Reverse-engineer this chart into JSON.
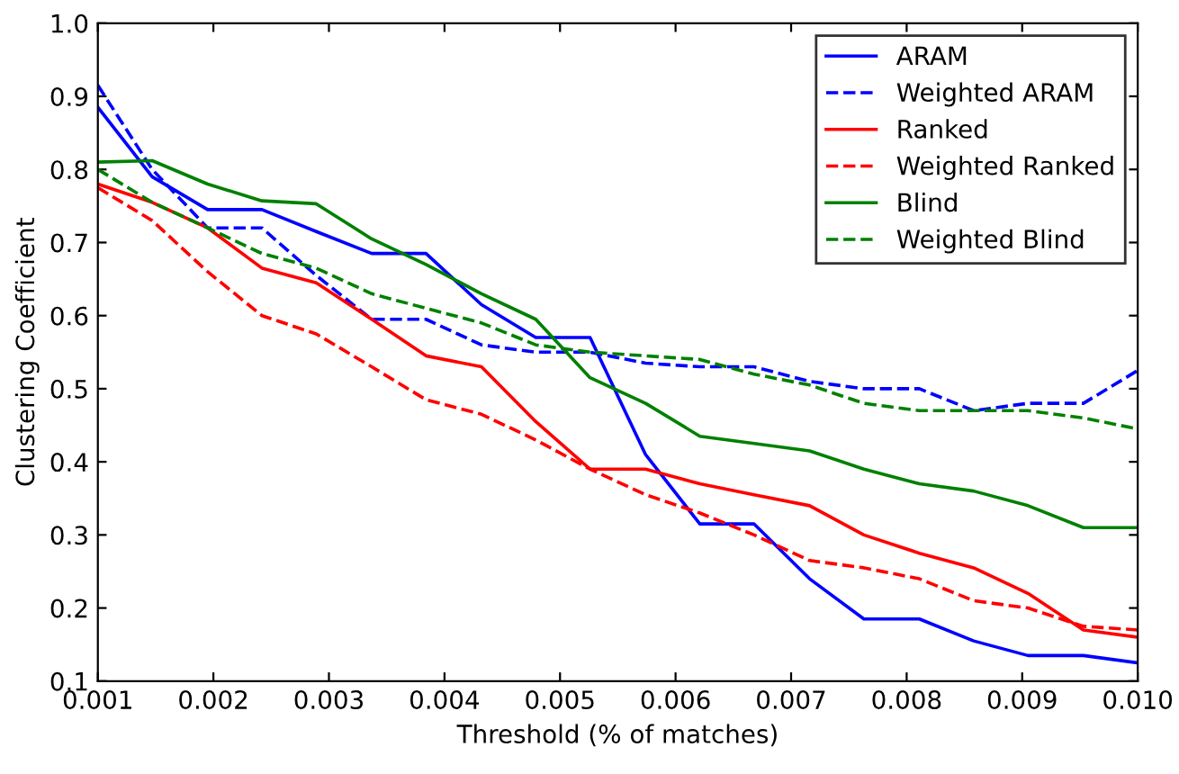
{
  "chart_data": {
    "type": "line",
    "xlabel": "Threshold (% of matches)",
    "ylabel": "Clustering Coefficient",
    "x": [
      0.001,
      0.00147,
      0.00195,
      0.00242,
      0.00289,
      0.00337,
      0.00384,
      0.00432,
      0.00479,
      0.00526,
      0.00574,
      0.00621,
      0.00668,
      0.00716,
      0.00763,
      0.00811,
      0.00858,
      0.00905,
      0.00953,
      0.01
    ],
    "series": [
      {
        "name": "ARAM",
        "color": "#0000ff",
        "line_style": "solid",
        "values": [
          0.885,
          0.79,
          0.745,
          0.745,
          0.715,
          0.685,
          0.685,
          0.615,
          0.57,
          0.57,
          0.41,
          0.315,
          0.315,
          0.24,
          0.185,
          0.185,
          0.155,
          0.135,
          0.135,
          0.125
        ]
      },
      {
        "name": "Weighted ARAM",
        "color": "#0000ff",
        "line_style": "dashed",
        "values": [
          0.915,
          0.8,
          0.72,
          0.72,
          0.655,
          0.595,
          0.595,
          0.56,
          0.55,
          0.55,
          0.535,
          0.53,
          0.53,
          0.51,
          0.5,
          0.5,
          0.47,
          0.48,
          0.48,
          0.525
        ]
      },
      {
        "name": "Ranked",
        "color": "#ff0000",
        "line_style": "solid",
        "values": [
          0.78,
          0.755,
          0.72,
          0.665,
          0.645,
          0.595,
          0.545,
          0.53,
          0.455,
          0.39,
          0.39,
          0.37,
          0.355,
          0.34,
          0.3,
          0.275,
          0.255,
          0.22,
          0.17,
          0.16
        ]
      },
      {
        "name": "Weighted Ranked",
        "color": "#ff0000",
        "line_style": "dashed",
        "values": [
          0.775,
          0.73,
          0.66,
          0.6,
          0.575,
          0.53,
          0.485,
          0.465,
          0.43,
          0.39,
          0.355,
          0.33,
          0.3,
          0.265,
          0.255,
          0.24,
          0.21,
          0.2,
          0.175,
          0.17
        ]
      },
      {
        "name": "Blind",
        "color": "#008000",
        "line_style": "solid",
        "values": [
          0.81,
          0.812,
          0.78,
          0.757,
          0.753,
          0.705,
          0.67,
          0.63,
          0.595,
          0.515,
          0.48,
          0.435,
          0.425,
          0.415,
          0.39,
          0.37,
          0.36,
          0.34,
          0.31,
          0.31
        ]
      },
      {
        "name": "Weighted Blind",
        "color": "#008000",
        "line_style": "dashed",
        "values": [
          0.8,
          0.755,
          0.72,
          0.685,
          0.665,
          0.63,
          0.61,
          0.59,
          0.56,
          0.55,
          0.545,
          0.54,
          0.52,
          0.505,
          0.48,
          0.47,
          0.47,
          0.47,
          0.46,
          0.445
        ]
      }
    ],
    "xlim": [
      0.001,
      0.01
    ],
    "xticks": [
      0.001,
      0.002,
      0.003,
      0.004,
      0.005,
      0.006,
      0.007,
      0.008,
      0.009,
      {
        "value": 0.01,
        "label": "0.010"
      }
    ],
    "ylim": [
      0.1,
      1.0
    ],
    "yticks": [
      0.1,
      0.2,
      0.3,
      0.4,
      0.5,
      0.6,
      0.7,
      0.8,
      0.9,
      {
        "value": 1.0,
        "label": "1.0"
      }
    ],
    "grid": false,
    "legend": "top right",
    "marker": "none"
  }
}
